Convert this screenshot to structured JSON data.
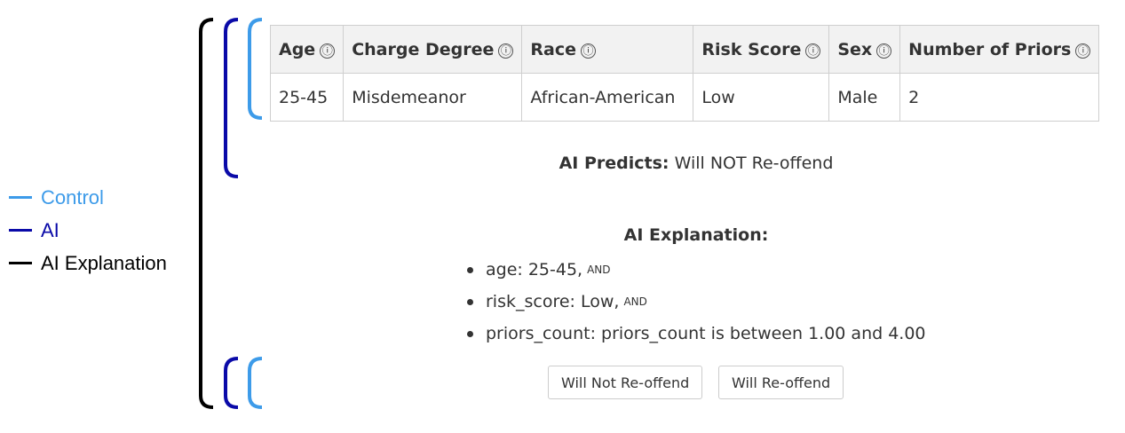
{
  "legend": {
    "items": [
      {
        "label": "Control",
        "color": "#3d9be9"
      },
      {
        "label": "AI",
        "color": "#0a0aa8"
      },
      {
        "label": "AI Explanation",
        "color": "#000000"
      }
    ]
  },
  "table": {
    "headers": [
      "Age",
      "Charge Degree",
      "Race",
      "Risk Score",
      "Sex",
      "Number of Priors"
    ],
    "row": [
      "25-45",
      "Misdemeanor",
      "African-American",
      "Low",
      "Male",
      "2"
    ],
    "info_glyph": "ⓘ"
  },
  "prediction": {
    "label": "AI Predicts:",
    "value": "Will NOT Re-offend"
  },
  "explanation": {
    "title": "AI Explanation:",
    "items": [
      {
        "text": "age: 25-45,",
        "suffix": "AND"
      },
      {
        "text": "risk_score: Low,",
        "suffix": "AND"
      },
      {
        "text": "priors_count: priors_count is between 1.00 and 4.00",
        "suffix": ""
      }
    ]
  },
  "buttons": {
    "not_reoffend": "Will Not Re-offend",
    "reoffend": "Will Re-offend"
  }
}
